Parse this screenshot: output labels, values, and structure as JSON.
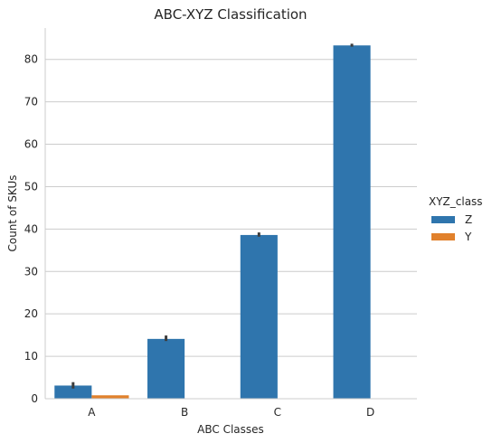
{
  "chart_data": {
    "type": "bar",
    "title": "ABC-XYZ Classification",
    "xlabel": "ABC Classes",
    "ylabel": "Count of SKUs",
    "categories": [
      "A",
      "B",
      "C",
      "D"
    ],
    "series": [
      {
        "name": "Z",
        "color": "#2f75ad",
        "values": [
          3.1,
          14.1,
          38.6,
          83.3
        ],
        "err_low": [
          2.4,
          13.6,
          38.2,
          83.0
        ],
        "err_high": [
          3.9,
          14.9,
          39.2,
          83.7
        ]
      },
      {
        "name": "Y",
        "color": "#e1812c",
        "values": [
          0.8,
          0,
          0,
          0
        ],
        "err_low": [
          0.8,
          0,
          0,
          0
        ],
        "err_high": [
          0.8,
          0,
          0,
          0
        ]
      }
    ],
    "yticks": [
      0,
      10,
      20,
      30,
      40,
      50,
      60,
      70,
      80
    ],
    "ylim": [
      0,
      87.4
    ],
    "grid": true,
    "legend": {
      "title": "XYZ_class",
      "placement": "right"
    }
  }
}
